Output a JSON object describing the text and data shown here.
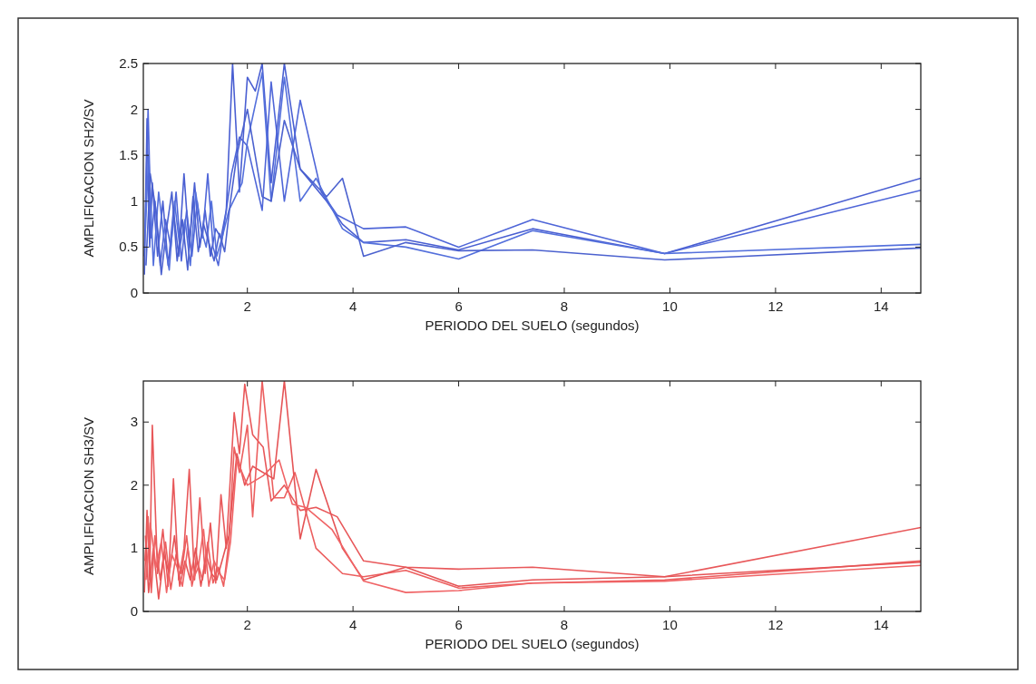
{
  "chart_data": [
    {
      "type": "line",
      "xlabel": "PERIODO DEL SUELO (segundos)",
      "ylabel": "AMPLIFICACION SH2/SV",
      "xlim": [
        0.03,
        14.75
      ],
      "xticks": [
        2,
        4,
        6,
        8,
        10,
        12,
        14
      ],
      "ylim": [
        0,
        2.5
      ],
      "yticks": [
        0,
        0.5,
        1,
        1.5,
        2,
        2.5
      ],
      "series": [
        {
          "color": "#4a5fd2",
          "x": [
            0.05,
            0.1,
            0.15,
            0.2,
            0.3,
            0.4,
            0.5,
            0.6,
            0.7,
            0.8,
            0.9,
            1.0,
            1.1,
            1.2,
            1.3,
            1.4,
            1.5,
            1.6,
            1.72,
            1.85,
            2.0,
            2.15,
            2.28,
            2.45,
            2.7,
            3.0,
            3.5,
            3.8,
            4.2,
            5.0,
            6.0,
            7.4,
            9.9,
            14.75
          ],
          "values": [
            0.2,
            1.9,
            0.5,
            1.2,
            0.4,
            1.0,
            0.3,
            0.9,
            0.4,
            1.3,
            0.5,
            1.2,
            0.5,
            0.9,
            0.4,
            0.7,
            0.6,
            0.9,
            2.5,
            1.1,
            2.35,
            2.2,
            2.5,
            1.2,
            2.5,
            1.35,
            1.0,
            0.75,
            0.55,
            0.58,
            0.47,
            0.7,
            0.43,
            1.25
          ]
        },
        {
          "color": "#4f66d8",
          "x": [
            0.05,
            0.12,
            0.18,
            0.25,
            0.35,
            0.45,
            0.55,
            0.65,
            0.75,
            0.85,
            0.95,
            1.05,
            1.15,
            1.25,
            1.35,
            1.45,
            1.55,
            1.7,
            1.85,
            2.0,
            2.28,
            2.45,
            2.7,
            3.0,
            3.4,
            3.7,
            4.2,
            5.0,
            6.0,
            7.4,
            9.9,
            14.75
          ],
          "values": [
            0.4,
            2.0,
            0.6,
            1.0,
            0.3,
            0.8,
            0.5,
            1.1,
            0.35,
            0.9,
            0.4,
            1.0,
            0.6,
            1.3,
            0.5,
            0.3,
            0.7,
            1.3,
            1.7,
            1.6,
            0.9,
            2.3,
            1.0,
            2.1,
            1.1,
            0.85,
            0.7,
            0.72,
            0.5,
            0.8,
            0.43,
            1.12
          ]
        },
        {
          "color": "#5470dc",
          "x": [
            0.07,
            0.13,
            0.22,
            0.32,
            0.42,
            0.52,
            0.62,
            0.72,
            0.82,
            0.92,
            1.02,
            1.12,
            1.22,
            1.32,
            1.42,
            1.52,
            1.65,
            1.9,
            2.0,
            2.28,
            2.45,
            2.7,
            3.0,
            3.3,
            3.8,
            4.2,
            5.0,
            6.0,
            7.4,
            9.9,
            14.75
          ],
          "values": [
            0.7,
            1.5,
            0.3,
            1.1,
            0.6,
            0.25,
            1.0,
            0.5,
            0.8,
            0.3,
            1.1,
            0.7,
            0.5,
            1.0,
            0.4,
            0.6,
            0.9,
            1.2,
            1.65,
            2.4,
            1.0,
            2.35,
            1.0,
            1.25,
            0.7,
            0.55,
            0.5,
            0.37,
            0.68,
            0.43,
            0.53
          ]
        },
        {
          "color": "#4c62cf",
          "x": [
            0.08,
            0.16,
            0.27,
            0.37,
            0.47,
            0.57,
            0.67,
            0.77,
            0.87,
            0.97,
            1.07,
            1.17,
            1.27,
            1.37,
            1.47,
            1.57,
            1.68,
            1.8,
            2.0,
            2.28,
            2.45,
            2.7,
            3.0,
            3.5,
            3.8,
            4.2,
            5.0,
            6.0,
            7.4,
            9.9,
            14.75
          ],
          "values": [
            0.3,
            1.3,
            0.9,
            0.2,
            0.7,
            1.1,
            0.35,
            0.8,
            0.25,
            1.05,
            0.45,
            0.75,
            0.55,
            0.35,
            0.65,
            0.45,
            1.0,
            1.5,
            2.0,
            1.05,
            1.0,
            1.88,
            1.35,
            1.05,
            1.25,
            0.4,
            0.55,
            0.46,
            0.47,
            0.36,
            0.49
          ]
        }
      ]
    },
    {
      "type": "line",
      "xlabel": "PERIODO DEL SUELO (segundos)",
      "ylabel": "AMPLIFICACION SH3/SV",
      "xlim": [
        0.03,
        14.75
      ],
      "xticks": [
        2,
        4,
        6,
        8,
        10,
        12,
        14
      ],
      "ylim": [
        0,
        3.65
      ],
      "yticks": [
        0,
        1,
        2,
        3
      ],
      "series": [
        {
          "color": "#e8585a",
          "x": [
            0.05,
            0.1,
            0.15,
            0.2,
            0.3,
            0.4,
            0.5,
            0.6,
            0.7,
            0.8,
            0.9,
            1.0,
            1.1,
            1.2,
            1.3,
            1.4,
            1.5,
            1.6,
            1.75,
            1.85,
            1.95,
            2.1,
            2.3,
            2.45,
            2.7,
            3.0,
            3.3,
            3.7,
            4.2,
            5.0,
            6.0,
            7.4,
            9.9,
            14.75
          ],
          "values": [
            0.3,
            1.6,
            0.5,
            2.95,
            0.6,
            1.3,
            0.4,
            2.1,
            0.5,
            1.0,
            2.25,
            0.5,
            1.8,
            0.6,
            1.4,
            0.45,
            1.85,
            1.0,
            3.15,
            2.5,
            3.6,
            2.8,
            2.6,
            1.75,
            2.0,
            1.6,
            1.65,
            1.5,
            0.8,
            0.7,
            0.67,
            0.7,
            0.55,
            1.33
          ]
        },
        {
          "color": "#ec5f5f",
          "x": [
            0.06,
            0.12,
            0.18,
            0.25,
            0.35,
            0.45,
            0.55,
            0.65,
            0.75,
            0.85,
            0.95,
            1.05,
            1.15,
            1.25,
            1.35,
            1.45,
            1.55,
            1.65,
            1.75,
            1.85,
            2.0,
            2.1,
            2.28,
            2.5,
            2.7,
            2.9,
            3.3,
            3.8,
            4.2,
            5.0,
            6.0,
            7.4,
            9.9,
            14.75
          ],
          "values": [
            0.8,
            1.5,
            0.3,
            1.2,
            0.5,
            1.1,
            0.35,
            0.9,
            0.6,
            1.2,
            0.4,
            0.8,
            0.5,
            1.1,
            0.45,
            0.7,
            0.4,
            1.1,
            2.6,
            2.2,
            2.95,
            1.5,
            3.65,
            1.8,
            1.8,
            2.2,
            1.0,
            0.6,
            0.55,
            0.65,
            0.37,
            0.45,
            0.5,
            0.8
          ]
        },
        {
          "color": "#e55456",
          "x": [
            0.07,
            0.13,
            0.22,
            0.32,
            0.42,
            0.52,
            0.62,
            0.72,
            0.82,
            0.92,
            1.02,
            1.12,
            1.22,
            1.32,
            1.42,
            1.52,
            1.65,
            1.8,
            1.95,
            2.1,
            2.5,
            2.7,
            3.0,
            3.3,
            3.8,
            4.2,
            5.0,
            6.0,
            7.4,
            9.9,
            14.75
          ],
          "values": [
            1.2,
            0.3,
            1.0,
            0.2,
            0.9,
            0.6,
            1.2,
            0.4,
            0.8,
            0.5,
            1.0,
            0.4,
            0.9,
            0.6,
            0.5,
            0.8,
            1.2,
            2.5,
            2.0,
            2.3,
            2.1,
            3.65,
            1.15,
            2.25,
            1.0,
            0.5,
            0.7,
            0.4,
            0.5,
            0.55,
            0.78
          ]
        },
        {
          "color": "#f06466",
          "x": [
            0.08,
            0.16,
            0.27,
            0.37,
            0.47,
            0.57,
            0.67,
            0.77,
            0.87,
            0.97,
            1.07,
            1.17,
            1.27,
            1.37,
            1.47,
            1.57,
            1.68,
            1.8,
            2.0,
            2.3,
            2.6,
            2.85,
            3.1,
            3.6,
            4.2,
            5.0,
            6.0,
            7.4,
            9.9,
            14.75
          ],
          "values": [
            0.5,
            1.4,
            0.7,
            1.1,
            0.3,
            0.9,
            0.7,
            0.4,
            1.0,
            0.5,
            0.7,
            1.3,
            0.4,
            0.8,
            0.6,
            0.5,
            1.1,
            2.4,
            2.0,
            2.15,
            2.4,
            1.7,
            1.65,
            1.3,
            0.48,
            0.3,
            0.33,
            0.45,
            0.48,
            0.73
          ]
        }
      ]
    }
  ]
}
